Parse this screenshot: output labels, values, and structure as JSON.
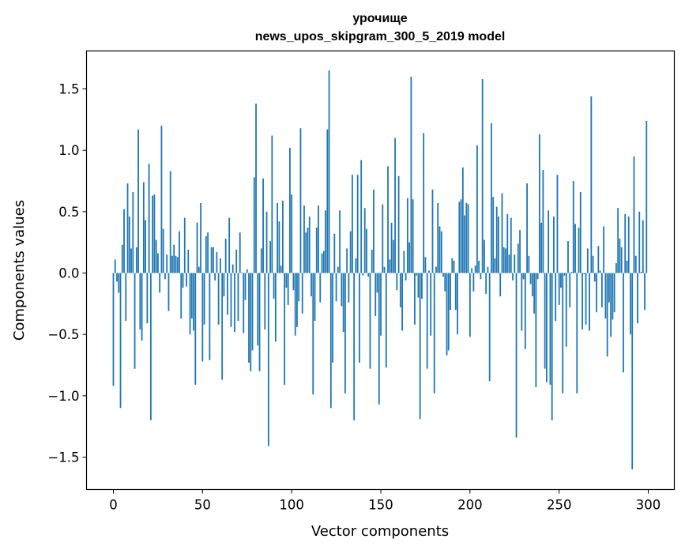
{
  "chart_data": {
    "type": "bar",
    "title_line1": "урочище",
    "title_line2": "news_upos_skipgram_300_5_2019 model",
    "xlabel": "Vector components",
    "ylabel": "Components values",
    "xlim": [
      -15.06,
      314.6
    ],
    "ylim": [
      -1.764,
      1.809
    ],
    "xticks": [
      0,
      50,
      100,
      150,
      200,
      250,
      300
    ],
    "xtick_labels": [
      "0",
      "50",
      "100",
      "150",
      "200",
      "250",
      "300"
    ],
    "yticks": [
      -1.5,
      -1.0,
      -0.5,
      0.0,
      0.5,
      1.0,
      1.5
    ],
    "ytick_labels": [
      "−1.5",
      "−1.0",
      "−0.5",
      "0.0",
      "0.5",
      "1.0",
      "1.5"
    ],
    "grid": false,
    "color": "#1f77b4",
    "values": [
      -0.92,
      0.11,
      -0.07,
      -0.16,
      -1.1,
      0.23,
      0.52,
      -0.39,
      0.73,
      0.46,
      0.2,
      0.66,
      -0.78,
      0.21,
      1.17,
      -0.46,
      -0.55,
      0.74,
      0.43,
      -0.41,
      0.89,
      -1.2,
      0.63,
      0.64,
      0.27,
      0.16,
      -0.16,
      1.2,
      0.36,
      -0.05,
      0.15,
      -0.31,
      0.83,
      0.14,
      0.23,
      0.14,
      0.13,
      0.34,
      -0.37,
      -0.12,
      0.45,
      -0.11,
      0.19,
      -0.5,
      -0.37,
      -0.47,
      -0.91,
      0.41,
      0.05,
      0.57,
      -0.72,
      -0.42,
      0.3,
      0.33,
      -0.71,
      0.21,
      0.21,
      -0.06,
      0.17,
      -0.42,
      0.12,
      -0.87,
      -0.19,
      0.28,
      -0.34,
      0.45,
      -0.44,
      0.07,
      -0.48,
      0.19,
      -0.39,
      0.33,
      0.005,
      -0.49,
      -0.22,
      0.03,
      -0.73,
      -0.8,
      -0.63,
      0.78,
      1.38,
      -0.59,
      -0.8,
      0.2,
      0.77,
      -0.46,
      0.5,
      -1.41,
      0.26,
      1.12,
      -0.21,
      -0.56,
      0.57,
      0.42,
      0.06,
      0.59,
      -0.91,
      -0.12,
      -0.26,
      1.02,
      0.64,
      -0.14,
      -0.51,
      -0.44,
      -0.23,
      1.18,
      -0.33,
      0.55,
      0.33,
      0.37,
      0.46,
      -0.19,
      -0.99,
      -0.39,
      0.37,
      0.55,
      -0.24,
      0.16,
      0.18,
      0.51,
      1.17,
      1.65,
      -1.1,
      -0.73,
      0.32,
      -0.23,
      0.05,
      0.51,
      -0.27,
      -0.48,
      -0.98,
      0.2,
      -0.24,
      0.34,
      0.8,
      -1.2,
      0.12,
      0.8,
      -0.73,
      0.92,
      -0.02,
      0.53,
      0.36,
      -0.03,
      -0.78,
      0.19,
      0.68,
      -0.35,
      -0.16,
      -1.07,
      -0.51,
      0.56,
      0.05,
      -0.77,
      0.87,
      0.11,
      0.41,
      0.27,
      1.1,
      -0.14,
      0.79,
      -0.28,
      -0.47,
      0.18,
      -0.06,
      0.61,
      0.25,
      1.6,
      0.6,
      -0.42,
      -0.02,
      -0.2,
      -1.19,
      -0.21,
      1.14,
      0.13,
      -0.78,
      0.02,
      -0.51,
      0.68,
      -0.98,
      0.05,
      0.57,
      0.38,
      0.34,
      -0.03,
      -0.15,
      -0.67,
      -0.63,
      -0.3,
      0.12,
      0.1,
      -0.3,
      -0.5,
      0.58,
      0.6,
      0.86,
      0.47,
      0.57,
      0.56,
      -0.52,
      0.04,
      -0.15,
      0.06,
      1.04,
      0.1,
      -0.05,
      1.58,
      0.27,
      -0.17,
      0.05,
      -0.88,
      1.22,
      0.62,
      0.12,
      0.54,
      0.46,
      -0.19,
      0.65,
      0.21,
      0.2,
      0.48,
      0.15,
      0.45,
      -0.06,
      0.15,
      -1.34,
      0.24,
      0.35,
      -0.47,
      -0.05,
      -0.62,
      0.73,
      0.14,
      -0.09,
      -0.19,
      -0.33,
      -0.93,
      -0.05,
      1.13,
      0.41,
      0.84,
      -0.78,
      -0.89,
      0.51,
      -0.91,
      -1.2,
      0.46,
      -0.39,
      0.8,
      -0.26,
      -0.12,
      -0.98,
      -0.02,
      -0.6,
      0.26,
      -0.28,
      0.01,
      0.75,
      0.4,
      -0.98,
      0.37,
      0.66,
      -0.46,
      -0.01,
      -0.42,
      0.2,
      -0.47,
      1.44,
      0.14,
      -0.07,
      -0.32,
      0.22,
      0.02,
      -0.28,
      0.38,
      -0.37,
      -0.68,
      -0.24,
      -0.52,
      -0.38,
      -0.32,
      0.08,
      0.53,
      0.28,
      0.21,
      -0.81,
      0.48,
      0.1,
      0.46,
      -0.5,
      -1.6,
      0.95,
      0.14,
      -0.41,
      0.5,
      0.01,
      0.43,
      -0.3,
      1.24
    ]
  }
}
